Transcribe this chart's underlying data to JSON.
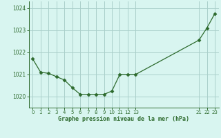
{
  "x": [
    0,
    1,
    2,
    3,
    4,
    5,
    6,
    7,
    8,
    9,
    10,
    11,
    12,
    13,
    21,
    22,
    23
  ],
  "y": [
    1021.7,
    1021.1,
    1021.05,
    1020.9,
    1020.75,
    1020.4,
    1020.1,
    1020.1,
    1020.1,
    1020.1,
    1020.25,
    1021.0,
    1021.0,
    1021.0,
    1022.55,
    1023.1,
    1023.75
  ],
  "line_color": "#2d6a2d",
  "marker": "D",
  "marker_size": 2.5,
  "background_color": "#d8f5f0",
  "grid_color": "#aacfca",
  "xlabel": "Graphe pression niveau de la mer (hPa)",
  "xlabel_color": "#2d6a2d",
  "tick_color": "#2d6a2d",
  "ylim": [
    1019.5,
    1024.3
  ],
  "xlim": [
    -0.5,
    23.5
  ],
  "yticks": [
    1020,
    1021,
    1022,
    1023,
    1024
  ],
  "xticks": [
    0,
    1,
    2,
    3,
    4,
    5,
    6,
    7,
    8,
    9,
    10,
    11,
    12,
    13,
    21,
    22,
    23
  ],
  "xtick_labels": [
    "0",
    "1",
    "2",
    "3",
    "4",
    "5",
    "6",
    "7",
    "8",
    "9",
    "10",
    "11",
    "12",
    "13",
    "21",
    "22",
    "23"
  ],
  "spine_color": "#2d6a2d",
  "figsize": [
    3.2,
    2.0
  ],
  "dpi": 100
}
